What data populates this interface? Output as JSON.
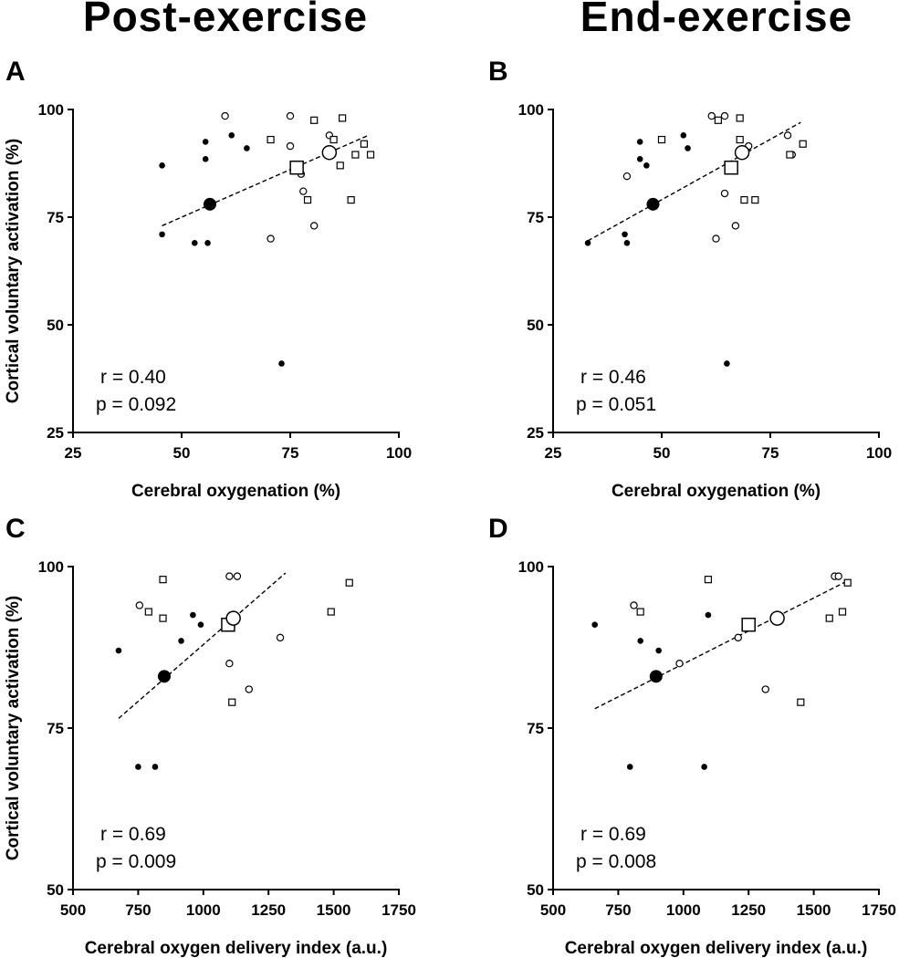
{
  "column_titles": [
    "Post-exercise",
    "End-exercise"
  ],
  "chart_data": [
    {
      "panel": "A",
      "type": "scatter",
      "xlabel": "Cerebral oxygenation (%)",
      "ylabel": "Cortical voluntary activation (%)",
      "xlim": [
        25,
        100
      ],
      "xticks": [
        25,
        50,
        75,
        100
      ],
      "ylim": [
        25,
        100
      ],
      "yticks": [
        25,
        50,
        75,
        100
      ],
      "stats": {
        "r": "r = 0.40",
        "p": "p = 0.092"
      },
      "trendline": {
        "x": [
          45.5,
          93
        ],
        "y": [
          73,
          94
        ]
      },
      "series": [
        {
          "name": "group-filled-dot",
          "marker": "filled-circle",
          "points": [
            [
              45.5,
              87
            ],
            [
              45.5,
              71
            ],
            [
              53,
              69
            ],
            [
              55.5,
              92.5
            ],
            [
              55.5,
              88.5
            ],
            [
              56,
              69
            ],
            [
              61.5,
              94
            ],
            [
              65,
              91
            ],
            [
              73,
              41
            ]
          ]
        },
        {
          "name": "group-open-circle",
          "marker": "open-circle",
          "points": [
            [
              60,
              98.5
            ],
            [
              70.5,
              70
            ],
            [
              75,
              98.5
            ],
            [
              75,
              91.5
            ],
            [
              77.5,
              85
            ],
            [
              78,
              81
            ],
            [
              80.5,
              73
            ],
            [
              84,
              94
            ]
          ]
        },
        {
          "name": "group-open-square",
          "marker": "open-square",
          "points": [
            [
              70.5,
              93
            ],
            [
              79,
              79
            ],
            [
              80.5,
              97.5
            ],
            [
              85,
              93
            ],
            [
              86.5,
              87
            ],
            [
              87,
              98
            ],
            [
              89,
              79
            ],
            [
              90,
              89.5
            ],
            [
              92,
              92
            ],
            [
              93.5,
              89.5
            ]
          ]
        }
      ],
      "means": [
        {
          "marker": "filled-circle",
          "point": [
            56.5,
            78
          ]
        },
        {
          "marker": "open-square",
          "point": [
            76.5,
            86.5
          ]
        },
        {
          "marker": "open-circle",
          "point": [
            84,
            90
          ]
        }
      ]
    },
    {
      "panel": "B",
      "type": "scatter",
      "xlabel": "Cerebral oxygenation (%)",
      "ylabel": "",
      "xlim": [
        25,
        100
      ],
      "xticks": [
        25,
        50,
        75,
        100
      ],
      "ylim": [
        25,
        100
      ],
      "yticks": [
        25,
        50,
        75,
        100
      ],
      "stats": {
        "r": "r = 0.46",
        "p": "p = 0.051"
      },
      "trendline": {
        "x": [
          33,
          82
        ],
        "y": [
          69.5,
          97
        ]
      },
      "series": [
        {
          "name": "group-filled-dot",
          "marker": "filled-circle",
          "points": [
            [
              33,
              69
            ],
            [
              41.5,
              71
            ],
            [
              42,
              69
            ],
            [
              45,
              92.5
            ],
            [
              45,
              88.5
            ],
            [
              46.5,
              87
            ],
            [
              55,
              94
            ],
            [
              56,
              91
            ],
            [
              65,
              41
            ]
          ]
        },
        {
          "name": "group-open-circle",
          "marker": "open-circle",
          "points": [
            [
              42,
              84.5
            ],
            [
              61.5,
              98.5
            ],
            [
              62.5,
              70
            ],
            [
              64.5,
              98.5
            ],
            [
              64.5,
              80.5
            ],
            [
              67,
              73
            ],
            [
              70,
              91.5
            ],
            [
              79,
              94
            ],
            [
              80,
              89.5
            ]
          ]
        },
        {
          "name": "group-open-square",
          "marker": "open-square",
          "points": [
            [
              50,
              93
            ],
            [
              63,
              97.5
            ],
            [
              68,
              98
            ],
            [
              68,
              93
            ],
            [
              69,
              79
            ],
            [
              71.5,
              79
            ],
            [
              79.5,
              89.5
            ],
            [
              82.5,
              92
            ]
          ]
        }
      ],
      "means": [
        {
          "marker": "filled-circle",
          "point": [
            48,
            78
          ]
        },
        {
          "marker": "open-square",
          "point": [
            66,
            86.5
          ]
        },
        {
          "marker": "open-circle",
          "point": [
            68.5,
            90
          ]
        }
      ]
    },
    {
      "panel": "C",
      "type": "scatter",
      "xlabel": "Cerebral oxygen delivery index (a.u.)",
      "ylabel": "Cortical voluntary activation (%)",
      "xlim": [
        500,
        1750
      ],
      "xticks": [
        500,
        750,
        1000,
        1250,
        1500,
        1750
      ],
      "ylim": [
        50,
        100
      ],
      "yticks": [
        50,
        75,
        100
      ],
      "stats": {
        "r": "r = 0.69",
        "p": "p = 0.009"
      },
      "trendline": {
        "x": [
          675,
          1315
        ],
        "y": [
          76.5,
          99
        ]
      },
      "series": [
        {
          "name": "group-filled-dot",
          "marker": "filled-circle",
          "points": [
            [
              675,
              87
            ],
            [
              750,
              69
            ],
            [
              815,
              69
            ],
            [
              915,
              88.5
            ],
            [
              960,
              92.5
            ],
            [
              990,
              91
            ]
          ]
        },
        {
          "name": "group-open-circle",
          "marker": "open-circle",
          "points": [
            [
              755,
              94
            ],
            [
              1100,
              98.5
            ],
            [
              1130,
              98.5
            ],
            [
              1100,
              85
            ],
            [
              1175,
              81
            ],
            [
              1295,
              89
            ]
          ]
        },
        {
          "name": "group-open-square",
          "marker": "open-square",
          "points": [
            [
              790,
              93
            ],
            [
              845,
              98
            ],
            [
              845,
              92
            ],
            [
              1110,
              79
            ],
            [
              1490,
              93
            ],
            [
              1560,
              97.5
            ]
          ]
        }
      ],
      "means": [
        {
          "marker": "filled-circle",
          "point": [
            850,
            83
          ]
        },
        {
          "marker": "open-square",
          "point": [
            1095,
            91
          ]
        },
        {
          "marker": "open-circle",
          "point": [
            1115,
            92
          ]
        }
      ]
    },
    {
      "panel": "D",
      "type": "scatter",
      "xlabel": "Cerebral oxygen delivery index (a.u.)",
      "ylabel": "",
      "xlim": [
        500,
        1750
      ],
      "xticks": [
        500,
        750,
        1000,
        1250,
        1500,
        1750
      ],
      "ylim": [
        50,
        100
      ],
      "yticks": [
        50,
        75,
        100
      ],
      "stats": {
        "r": "r = 0.69",
        "p": "p = 0.008"
      },
      "trendline": {
        "x": [
          660,
          1640
        ],
        "y": [
          78,
          98
        ]
      },
      "series": [
        {
          "name": "group-filled-dot",
          "marker": "filled-circle",
          "points": [
            [
              660,
              91
            ],
            [
              795,
              69
            ],
            [
              835,
              88.5
            ],
            [
              905,
              87
            ],
            [
              1080,
              69
            ],
            [
              1095,
              92.5
            ]
          ]
        },
        {
          "name": "group-open-circle",
          "marker": "open-circle",
          "points": [
            [
              810,
              94
            ],
            [
              985,
              85
            ],
            [
              1210,
              89
            ],
            [
              1315,
              81
            ],
            [
              1580,
              98.5
            ],
            [
              1595,
              98.5
            ]
          ]
        },
        {
          "name": "group-open-square",
          "marker": "open-square",
          "points": [
            [
              835,
              93
            ],
            [
              1095,
              98
            ],
            [
              1450,
              79
            ],
            [
              1560,
              92
            ],
            [
              1610,
              93
            ],
            [
              1630,
              97.5
            ]
          ]
        }
      ],
      "means": [
        {
          "marker": "filled-circle",
          "point": [
            895,
            83
          ]
        },
        {
          "marker": "open-square",
          "point": [
            1250,
            91
          ]
        },
        {
          "marker": "open-circle",
          "point": [
            1360,
            92
          ]
        }
      ]
    }
  ]
}
